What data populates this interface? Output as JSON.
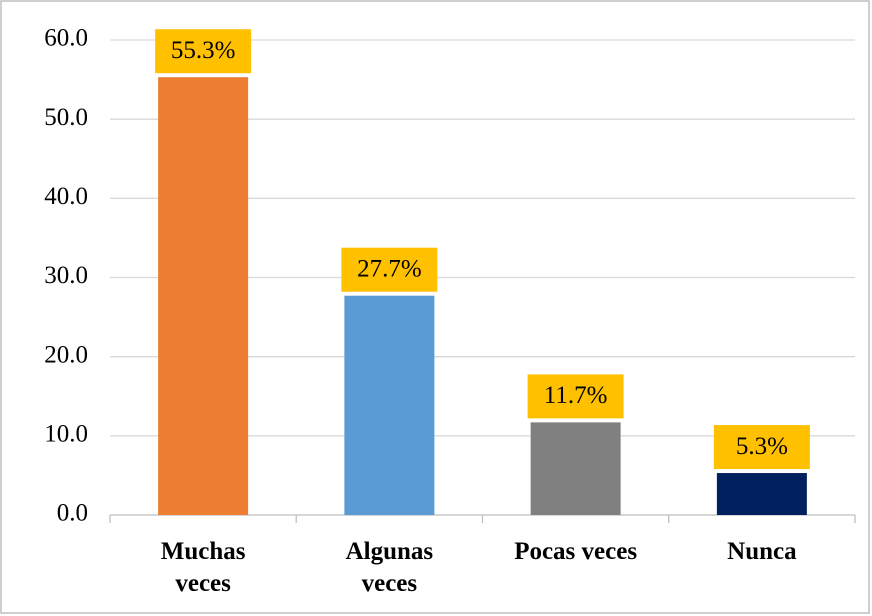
{
  "chart_data": {
    "type": "bar",
    "categories": [
      "Muchas veces",
      "Algunas veces",
      "Pocas veces",
      "Nunca"
    ],
    "values": [
      55.3,
      27.7,
      11.7,
      5.3
    ],
    "value_labels": [
      "55.3%",
      "27.7%",
      "11.7%",
      "5.3%"
    ],
    "colors": [
      "#ED7D31",
      "#5B9BD5",
      "#808080",
      "#002060"
    ],
    "label_box_color": "#FFC000",
    "ylim": [
      0,
      60
    ],
    "yticks": [
      {
        "value": 0,
        "label": "0.0"
      },
      {
        "value": 10,
        "label": "10.0"
      },
      {
        "value": 20,
        "label": "20.0"
      },
      {
        "value": 30,
        "label": "30.0"
      },
      {
        "value": 40,
        "label": "40.0"
      },
      {
        "value": 50,
        "label": "50.0"
      },
      {
        "value": 60,
        "label": "60.0"
      }
    ],
    "grid": true
  }
}
